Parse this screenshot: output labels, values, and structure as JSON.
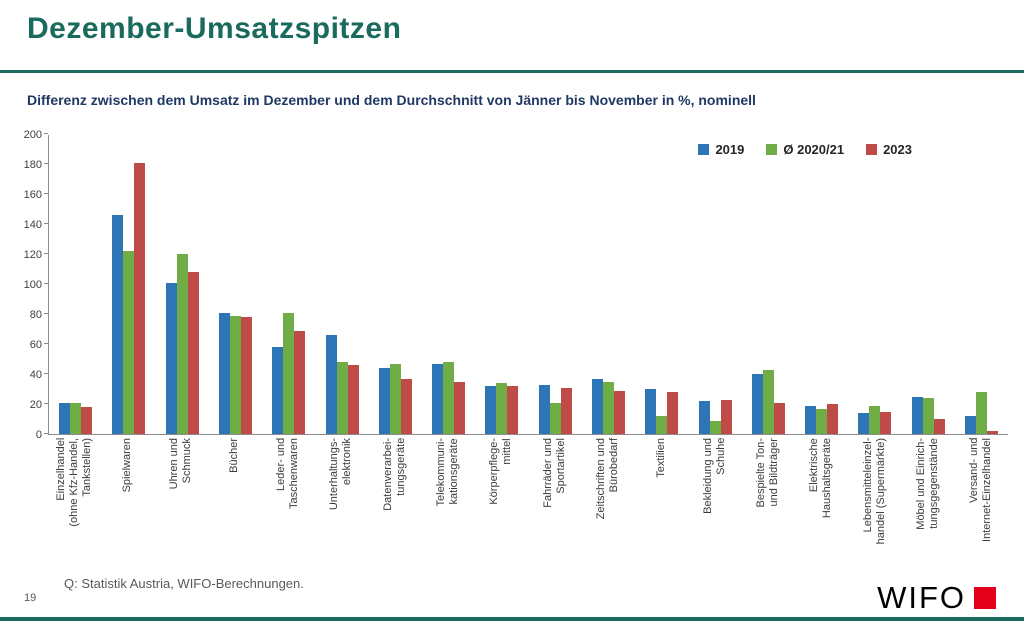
{
  "page": {
    "title": "Dezember-Umsatzspitzen",
    "page_number": "19",
    "source_note": "Q: Statistik Austria, WIFO-Berechnungen.",
    "logo_text": "WIFO"
  },
  "subtitle": "Differenz zwischen dem Umsatz im Dezember und dem Durchschnitt von Jänner bis November in %, nominell",
  "colors": {
    "accent_teal": "#1B6A5E",
    "subtitle_navy": "#1F3864",
    "logo_red": "#E2001A"
  },
  "chart_data": {
    "type": "bar",
    "title": "Dezember-Umsatzspitzen",
    "subtitle": "Differenz zwischen dem Umsatz im Dezember und dem Durchschnitt von Jänner bis November in %, nominell",
    "ylim": [
      0,
      200
    ],
    "ytick_step": 20,
    "grid": false,
    "legend_position": "top-right",
    "categories": [
      "Einzelhandel\n(ohne Kfz-Handel,\nTankstellen)",
      "Spielwaren",
      "Uhren und\nSchmuck",
      "Bücher",
      "Leder- und\nTaschenwaren",
      "Unterhaltungs-\nelektronik",
      "Datenverarbei-\ntungsgeräte",
      "Telekommuni-\nkationsgeräte",
      "Körperpflege-\nmittel",
      "Fahrräder und\nSportartikel",
      "Zeitschriften und\nBürobedarf",
      "Textilien",
      "Bekleidung und\nSchuhe",
      "Bespielte Ton-\nund Bildträger",
      "Elektrische\nHaushaltsgeräte",
      "Lebensmitteleinzel-\nhandel (Supermärkte)",
      "Möbel und Einrich-\ntungsgegenstände",
      "Versand- und\nInternet-Einzelhandel"
    ],
    "series": [
      {
        "name": "2019",
        "color": "#2E75B6",
        "values": [
          21,
          146,
          101,
          81,
          58,
          66,
          44,
          47,
          32,
          33,
          37,
          30,
          22,
          40,
          19,
          14,
          25,
          12
        ]
      },
      {
        "name": "Ø 2020/21",
        "color": "#70AD47",
        "values": [
          21,
          122,
          120,
          79,
          81,
          48,
          47,
          48,
          34,
          21,
          35,
          12,
          9,
          43,
          17,
          19,
          24,
          28
        ]
      },
      {
        "name": "2023",
        "color": "#BE4B48",
        "values": [
          18,
          181,
          108,
          78,
          69,
          46,
          37,
          35,
          32,
          31,
          29,
          28,
          23,
          21,
          20,
          15,
          10,
          2
        ]
      }
    ]
  }
}
